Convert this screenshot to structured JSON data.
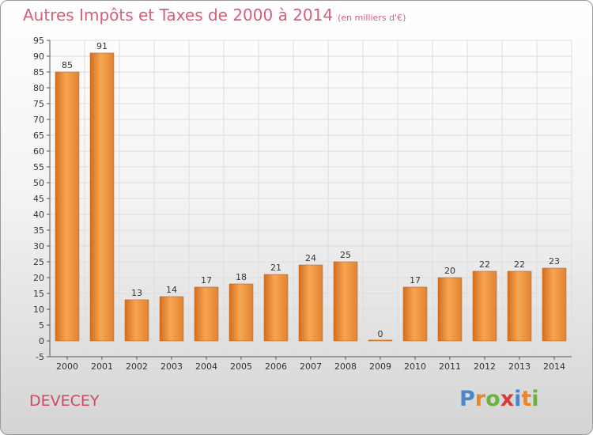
{
  "header": {
    "title": "Autres Impôts et Taxes de 2000 à 2014",
    "unit": "(en milliers d'€)"
  },
  "commune": "DEVECEY",
  "logo": {
    "letters": [
      "P",
      "r",
      "o",
      "x",
      "i",
      "t",
      "i"
    ],
    "colors": [
      "#4a86c8",
      "#e8872a",
      "#6cb23e",
      "#d63b3b",
      "#4a86c8",
      "#e8872a",
      "#6cb23e"
    ]
  },
  "colors": {
    "bar_light": "#f7a653",
    "bar_dark": "#cf6b1c",
    "grid": "#dddddd",
    "title": "#d4607a"
  },
  "chart_data": {
    "type": "bar",
    "title": "Autres Impôts et Taxes de 2000 à 2014",
    "subtitle": "(en milliers d'€)",
    "xlabel": "",
    "ylabel": "",
    "ylim": [
      -5,
      95
    ],
    "ytick_step": 5,
    "grid": true,
    "categories": [
      "2000",
      "2001",
      "2002",
      "2003",
      "2004",
      "2005",
      "2006",
      "2007",
      "2008",
      "2009",
      "2010",
      "2011",
      "2012",
      "2013",
      "2014"
    ],
    "values": [
      85,
      91,
      13,
      14,
      17,
      18,
      21,
      24,
      25,
      0,
      17,
      20,
      22,
      22,
      23
    ]
  }
}
